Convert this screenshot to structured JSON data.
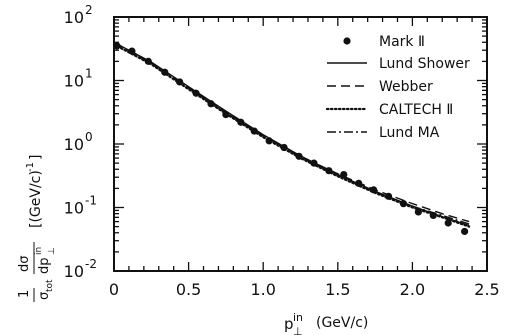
{
  "chart_data": {
    "type": "line",
    "y_scale": "log",
    "xlim": [
      0,
      2.5
    ],
    "ylim": [
      0.01,
      100
    ],
    "x_ticks": [
      {
        "value": 0,
        "label": "0"
      },
      {
        "value": 0.5,
        "label": "0.5"
      },
      {
        "value": 1.0,
        "label": "1.0"
      },
      {
        "value": 1.5,
        "label": "1.5"
      },
      {
        "value": 2.0,
        "label": "2.0"
      },
      {
        "value": 2.5,
        "label": "2.5"
      }
    ],
    "y_ticks": [
      {
        "value": 100,
        "base": "10",
        "exp": "2"
      },
      {
        "value": 10,
        "base": "10",
        "exp": "1"
      },
      {
        "value": 1,
        "base": "10",
        "exp": "0"
      },
      {
        "value": 0.1,
        "base": "10",
        "exp": "-1"
      },
      {
        "value": 0.01,
        "base": "10",
        "exp": "-2"
      }
    ],
    "xlabel": {
      "main": "p",
      "sup": "in",
      "sub": "⊥",
      "unit": "(GeV/c)"
    },
    "ylabel": {
      "numerator_one": "1",
      "sigma_sym": "σ",
      "sigma_sub": "tot",
      "frac_num": "dσ",
      "frac_den": "dp",
      "frac_den_sup": "in",
      "frac_den_sub": "⊥",
      "unit": "[(GeV/c)",
      "unit_exp": "-1",
      "unit_close": "]"
    },
    "legend_position": "top-right",
    "series": [
      {
        "name": "Mark Ⅱ",
        "style": "points",
        "x": [
          0.02,
          0.12,
          0.23,
          0.34,
          0.44,
          0.55,
          0.65,
          0.75,
          0.85,
          0.94,
          1.04,
          1.14,
          1.24,
          1.34,
          1.44,
          1.54,
          1.64,
          1.74,
          1.84,
          1.94,
          2.04,
          2.14,
          2.24,
          2.35
        ],
        "y": [
          35,
          29,
          20,
          13.5,
          9.5,
          6.3,
          4.3,
          2.9,
          2.2,
          1.6,
          1.12,
          0.88,
          0.64,
          0.5,
          0.38,
          0.33,
          0.24,
          0.19,
          0.15,
          0.115,
          0.085,
          0.075,
          0.057,
          0.042
        ]
      },
      {
        "name": "Lund Shower",
        "style": "solid",
        "x": [
          0.0,
          0.25,
          0.5,
          0.75,
          1.0,
          1.25,
          1.5,
          1.75,
          2.0,
          2.2,
          2.38
        ],
        "y": [
          40,
          19.5,
          8.0,
          3.3,
          1.4,
          0.65,
          0.33,
          0.18,
          0.105,
          0.072,
          0.052
        ]
      },
      {
        "name": "Webber",
        "style": "dashed",
        "x": [
          0.0,
          0.25,
          0.5,
          0.75,
          1.0,
          1.25,
          1.5,
          1.75,
          2.0,
          2.2,
          2.38
        ],
        "y": [
          39,
          19.0,
          7.8,
          3.2,
          1.38,
          0.64,
          0.34,
          0.19,
          0.115,
          0.08,
          0.06
        ]
      },
      {
        "name": "CALTECH Ⅱ",
        "style": "dotted",
        "x": [
          0.0,
          0.25,
          0.5,
          0.75,
          1.0,
          1.25,
          1.5,
          1.75,
          2.0,
          2.2,
          2.38
        ],
        "y": [
          37,
          18.0,
          7.3,
          3.0,
          1.28,
          0.6,
          0.31,
          0.17,
          0.1,
          0.07,
          0.05
        ]
      },
      {
        "name": "Lund MA",
        "style": "dashdot",
        "x": [
          0.0,
          0.25,
          0.5,
          0.75,
          1.0,
          1.25,
          1.5,
          1.75,
          2.0,
          2.2,
          2.38
        ],
        "y": [
          38,
          18.5,
          7.6,
          3.1,
          1.33,
          0.62,
          0.32,
          0.175,
          0.105,
          0.075,
          0.055
        ]
      }
    ]
  }
}
